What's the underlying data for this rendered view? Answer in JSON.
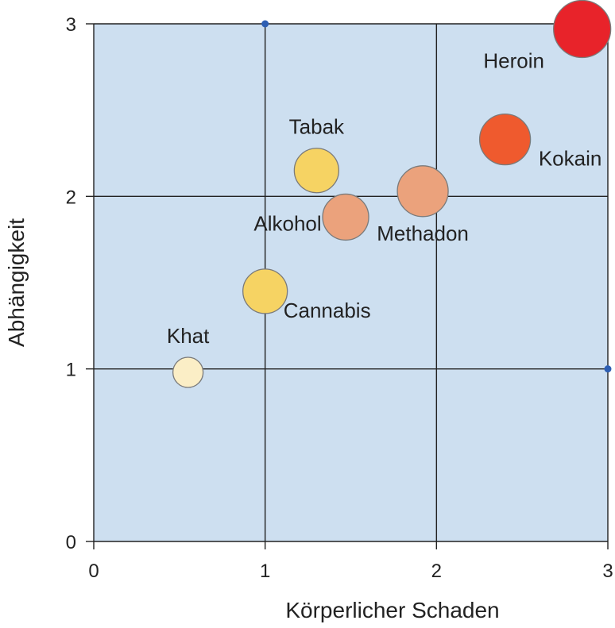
{
  "chart_data": {
    "type": "scatter",
    "xlabel": "Körperlicher Schaden",
    "ylabel": "Abhängigkeit",
    "xlim": [
      0,
      3
    ],
    "ylim": [
      0,
      3
    ],
    "xticks": [
      "0",
      "1",
      "2",
      "3"
    ],
    "yticks": [
      "0",
      "1",
      "2",
      "3"
    ],
    "grid": true,
    "colors": {
      "plot_background": "#cddff0",
      "grid": "#222222",
      "marker_outline": "#7a7a7a",
      "corner_marker": "#2e5fb3"
    },
    "points": [
      {
        "label": "Heroin",
        "x": 2.85,
        "y": 2.97,
        "color": "#e8232a",
        "label_pos": "bottom-left"
      },
      {
        "label": "Kokain",
        "x": 2.4,
        "y": 2.33,
        "color": "#ef5a2e",
        "label_pos": "bottom-right"
      },
      {
        "label": "Methadon",
        "x": 1.92,
        "y": 2.03,
        "color": "#eba27c",
        "label_pos": "bottom"
      },
      {
        "label": "Tabak",
        "x": 1.3,
        "y": 2.15,
        "color": "#f6d363",
        "label_pos": "top"
      },
      {
        "label": "Alkohol",
        "x": 1.47,
        "y": 1.88,
        "color": "#eba27c",
        "label_pos": "left"
      },
      {
        "label": "Cannabis",
        "x": 1.0,
        "y": 1.45,
        "color": "#f6d363",
        "label_pos": "bottom-right"
      },
      {
        "label": "Khat",
        "x": 0.55,
        "y": 0.98,
        "color": "#fbeec6",
        "label_pos": "top"
      }
    ],
    "corner_markers": [
      {
        "x": 1,
        "y": 3
      },
      {
        "x": 3,
        "y": 1
      }
    ]
  }
}
